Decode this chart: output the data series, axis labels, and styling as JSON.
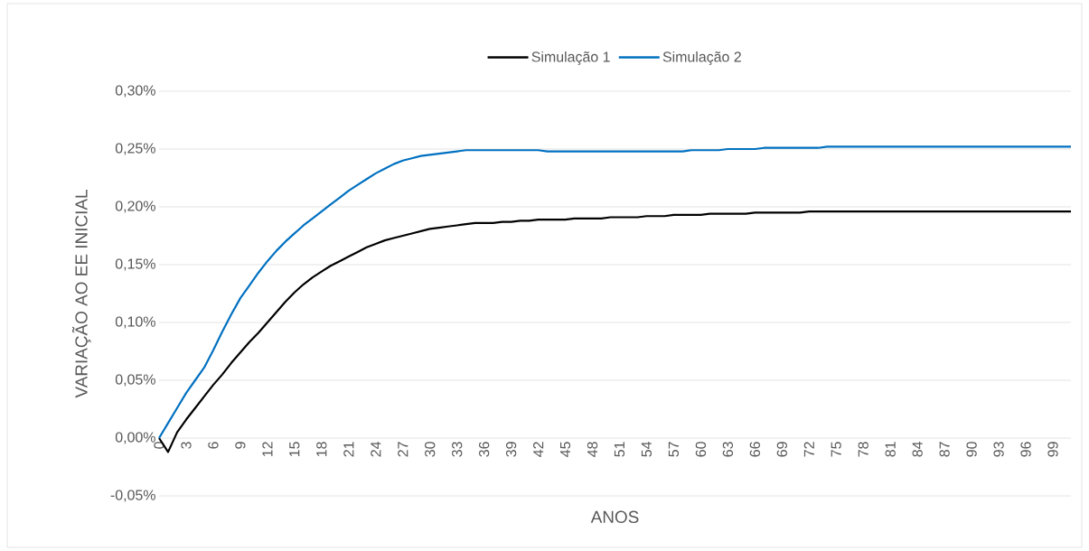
{
  "chart_data": {
    "type": "line",
    "xlabel": "ANOS",
    "ylabel": "VARIAÇÃO AO EE INICIAL",
    "x": [
      0,
      1,
      2,
      3,
      4,
      5,
      6,
      7,
      8,
      9,
      10,
      11,
      12,
      13,
      14,
      15,
      16,
      17,
      18,
      19,
      20,
      21,
      22,
      23,
      24,
      25,
      26,
      27,
      28,
      29,
      30,
      31,
      32,
      33,
      34,
      35,
      36,
      37,
      38,
      39,
      40,
      41,
      42,
      43,
      44,
      45,
      46,
      47,
      48,
      49,
      50,
      51,
      52,
      53,
      54,
      55,
      56,
      57,
      58,
      59,
      60,
      61,
      62,
      63,
      64,
      65,
      66,
      67,
      68,
      69,
      70,
      71,
      72,
      73,
      74,
      75,
      76,
      77,
      78,
      79,
      80,
      81,
      82,
      83,
      84,
      85,
      86,
      87,
      88,
      89,
      90,
      91,
      92,
      93,
      94,
      95,
      96,
      97,
      98,
      99,
      100,
      101
    ],
    "series": [
      {
        "name": "Simulação 1",
        "color": "#000000",
        "values": [
          0,
          -0.012,
          0.005,
          0.016,
          0.026,
          0.036,
          0.046,
          0.055,
          0.065,
          0.074,
          0.083,
          0.091,
          0.1,
          0.109,
          0.118,
          0.126,
          0.133,
          0.139,
          0.144,
          0.149,
          0.153,
          0.157,
          0.161,
          0.165,
          0.168,
          0.171,
          0.173,
          0.175,
          0.177,
          0.179,
          0.181,
          0.182,
          0.183,
          0.184,
          0.185,
          0.186,
          0.186,
          0.186,
          0.187,
          0.187,
          0.188,
          0.188,
          0.189,
          0.189,
          0.189,
          0.189,
          0.19,
          0.19,
          0.19,
          0.19,
          0.191,
          0.191,
          0.191,
          0.191,
          0.192,
          0.192,
          0.192,
          0.193,
          0.193,
          0.193,
          0.193,
          0.194,
          0.194,
          0.194,
          0.194,
          0.194,
          0.195,
          0.195,
          0.195,
          0.195,
          0.195,
          0.195,
          0.196,
          0.196,
          0.196,
          0.196,
          0.196,
          0.196,
          0.196,
          0.196,
          0.196,
          0.196,
          0.196,
          0.196,
          0.196,
          0.196,
          0.196,
          0.196,
          0.196,
          0.196,
          0.196,
          0.196,
          0.196,
          0.196,
          0.196,
          0.196,
          0.196,
          0.196,
          0.196,
          0.196,
          0.196,
          0.196
        ]
      },
      {
        "name": "Simulação 2",
        "color": "#0070c0",
        "values": [
          0,
          0.013,
          0.026,
          0.039,
          0.05,
          0.061,
          0.076,
          0.092,
          0.107,
          0.121,
          0.132,
          0.143,
          0.153,
          0.162,
          0.17,
          0.177,
          0.184,
          0.19,
          0.196,
          0.202,
          0.208,
          0.214,
          0.219,
          0.224,
          0.229,
          0.233,
          0.237,
          0.24,
          0.242,
          0.244,
          0.245,
          0.246,
          0.247,
          0.248,
          0.249,
          0.249,
          0.249,
          0.249,
          0.249,
          0.249,
          0.249,
          0.249,
          0.249,
          0.248,
          0.248,
          0.248,
          0.248,
          0.248,
          0.248,
          0.248,
          0.248,
          0.248,
          0.248,
          0.248,
          0.248,
          0.248,
          0.248,
          0.248,
          0.248,
          0.249,
          0.249,
          0.249,
          0.249,
          0.25,
          0.25,
          0.25,
          0.25,
          0.251,
          0.251,
          0.251,
          0.251,
          0.251,
          0.251,
          0.251,
          0.252,
          0.252,
          0.252,
          0.252,
          0.252,
          0.252,
          0.252,
          0.252,
          0.252,
          0.252,
          0.252,
          0.252,
          0.252,
          0.252,
          0.252,
          0.252,
          0.252,
          0.252,
          0.252,
          0.252,
          0.252,
          0.252,
          0.252,
          0.252,
          0.252,
          0.252,
          0.252,
          0.252
        ]
      }
    ],
    "xlim": [
      0,
      101
    ],
    "xticks": [
      0,
      3,
      6,
      9,
      12,
      15,
      18,
      21,
      24,
      27,
      30,
      33,
      36,
      39,
      42,
      45,
      48,
      51,
      54,
      57,
      60,
      63,
      66,
      69,
      72,
      75,
      78,
      81,
      84,
      87,
      90,
      93,
      96,
      99
    ],
    "ylim": [
      -0.05,
      0.3
    ],
    "yticks": [
      {
        "value": -0.05,
        "label": "-0,05%"
      },
      {
        "value": 0,
        "label": "0,00%"
      },
      {
        "value": 0.05,
        "label": "0,05%"
      },
      {
        "value": 0.1,
        "label": "0,10%"
      },
      {
        "value": 0.15,
        "label": "0,15%"
      },
      {
        "value": 0.2,
        "label": "0,20%"
      },
      {
        "value": 0.25,
        "label": "0,25%"
      },
      {
        "value": 0.3,
        "label": "0,30%"
      }
    ],
    "grid": "y",
    "legend": "top",
    "marker": "none",
    "line_style": "solid"
  }
}
